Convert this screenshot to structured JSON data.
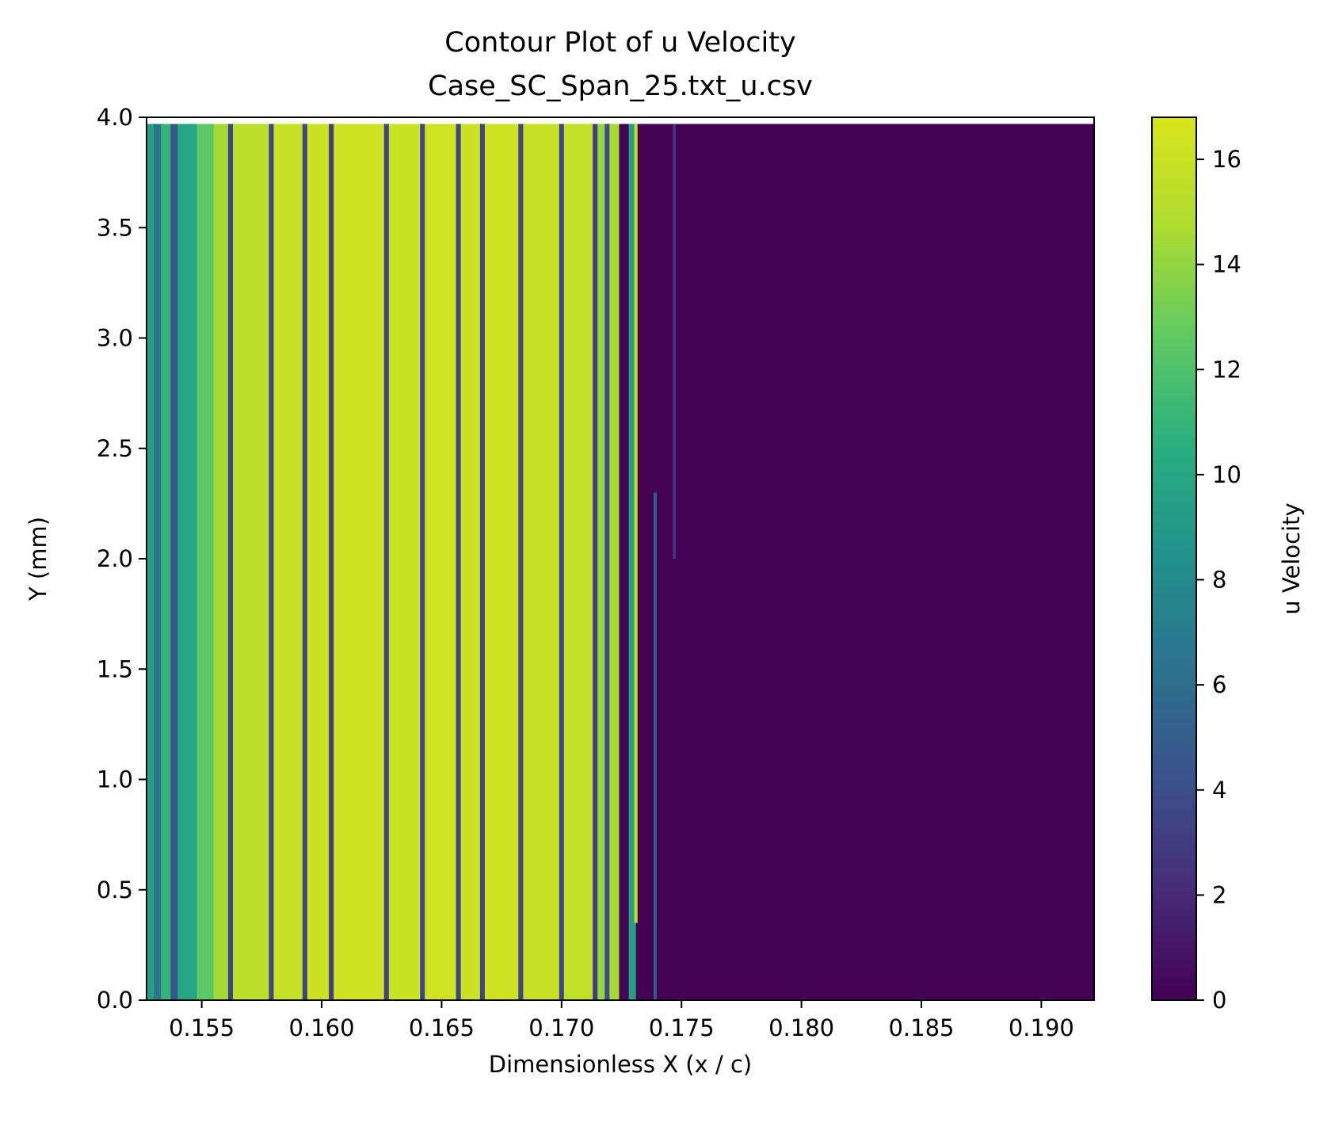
{
  "chart_data": {
    "type": "heatmap",
    "title": "Contour Plot of u Velocity",
    "subtitle": "Case_SC_Span_25.txt_u.csv",
    "xlabel": "Dimensionless X (x / c)",
    "ylabel": "Y (mm)",
    "xlim": [
      0.1527,
      0.1922
    ],
    "ylim": [
      0.0,
      4.0
    ],
    "data_top": 3.97,
    "x_ticks": [
      0.155,
      0.16,
      0.165,
      0.17,
      0.175,
      0.18,
      0.185,
      0.19
    ],
    "x_tick_labels": [
      "0.155",
      "0.160",
      "0.165",
      "0.170",
      "0.175",
      "0.180",
      "0.185",
      "0.190"
    ],
    "y_ticks": [
      0.0,
      0.5,
      1.0,
      1.5,
      2.0,
      2.5,
      3.0,
      3.5,
      4.0
    ],
    "y_tick_labels": [
      "0.0",
      "0.5",
      "1.0",
      "1.5",
      "2.0",
      "2.5",
      "3.0",
      "3.5",
      "4.0"
    ],
    "colorbar": {
      "label": "u Velocity",
      "min": 0,
      "max": 16.8,
      "ticks": [
        0,
        2,
        4,
        6,
        8,
        10,
        12,
        14,
        16
      ],
      "tick_labels": [
        "0",
        "2",
        "4",
        "6",
        "8",
        "10",
        "12",
        "14",
        "16"
      ],
      "colormap": "viridis"
    },
    "column_profile": [
      {
        "x_start": 0.1527,
        "x_end": 0.153,
        "u": 9.5
      },
      {
        "x_start": 0.153,
        "x_end": 0.1533,
        "u": 6.5
      },
      {
        "x_start": 0.1533,
        "x_end": 0.1537,
        "u": 11.0
      },
      {
        "x_start": 0.1537,
        "x_end": 0.154,
        "u": 4.5
      },
      {
        "x_start": 0.154,
        "x_end": 0.1548,
        "u": 10.0
      },
      {
        "x_start": 0.1548,
        "x_end": 0.1555,
        "u": 12.5
      },
      {
        "x_start": 0.1555,
        "x_end": 0.1561,
        "u": 14.5
      },
      {
        "x_start": 0.1561,
        "x_end": 0.1563,
        "u": 3.5
      },
      {
        "x_start": 0.1563,
        "x_end": 0.1578,
        "u": 15.3
      },
      {
        "x_start": 0.1578,
        "x_end": 0.158,
        "u": 3.5
      },
      {
        "x_start": 0.158,
        "x_end": 0.1592,
        "u": 15.8
      },
      {
        "x_start": 0.1592,
        "x_end": 0.1594,
        "u": 3.5
      },
      {
        "x_start": 0.1594,
        "x_end": 0.1603,
        "u": 16.1
      },
      {
        "x_start": 0.1603,
        "x_end": 0.1605,
        "u": 3.0
      },
      {
        "x_start": 0.1605,
        "x_end": 0.1626,
        "u": 16.2
      },
      {
        "x_start": 0.1626,
        "x_end": 0.1628,
        "u": 3.5
      },
      {
        "x_start": 0.1628,
        "x_end": 0.1641,
        "u": 16.0
      },
      {
        "x_start": 0.1641,
        "x_end": 0.1643,
        "u": 3.5
      },
      {
        "x_start": 0.1643,
        "x_end": 0.1656,
        "u": 16.3
      },
      {
        "x_start": 0.1656,
        "x_end": 0.1658,
        "u": 3.5
      },
      {
        "x_start": 0.1658,
        "x_end": 0.1666,
        "u": 16.1
      },
      {
        "x_start": 0.1666,
        "x_end": 0.1668,
        "u": 3.5
      },
      {
        "x_start": 0.1668,
        "x_end": 0.1682,
        "u": 16.2
      },
      {
        "x_start": 0.1682,
        "x_end": 0.1684,
        "u": 3.5
      },
      {
        "x_start": 0.1684,
        "x_end": 0.1699,
        "u": 15.9
      },
      {
        "x_start": 0.1699,
        "x_end": 0.1701,
        "u": 3.5
      },
      {
        "x_start": 0.1701,
        "x_end": 0.1713,
        "u": 15.7
      },
      {
        "x_start": 0.1713,
        "x_end": 0.1715,
        "u": 3.0
      },
      {
        "x_start": 0.1715,
        "x_end": 0.1718,
        "u": 14.0
      },
      {
        "x_start": 0.1718,
        "x_end": 0.172,
        "u": 4.0
      },
      {
        "x_start": 0.172,
        "x_end": 0.1724,
        "u": 14.5
      },
      {
        "x_start": 0.1724,
        "x_end": 0.1728,
        "u": 0.2
      },
      {
        "x_start": 0.1728,
        "x_end": 0.1731,
        "u": 9.5
      },
      {
        "x_start": 0.1731,
        "x_end": 0.1922,
        "u": 0.0
      }
    ],
    "thin_features": [
      {
        "x": 0.1731,
        "y_start": 0.35,
        "y_end": 3.97,
        "u": 16.0
      },
      {
        "x": 0.1739,
        "y_start": 0.0,
        "y_end": 2.3,
        "u": 5.0
      },
      {
        "x": 0.1747,
        "y_start": 2.0,
        "y_end": 3.97,
        "u": 2.5
      }
    ]
  }
}
